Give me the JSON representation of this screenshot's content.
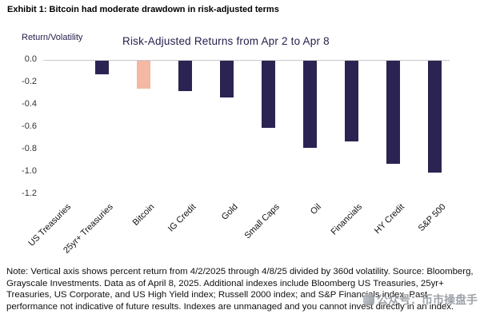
{
  "exhibit_title": "Exhibit 1: Bitcoin had moderate drawdown in risk-adjusted terms",
  "chart_data": {
    "type": "bar",
    "title": "Risk-Adjusted Returns from Apr 2 to Apr 8",
    "ylabel": "Return/Volatility",
    "xlabel": "",
    "ylim": [
      -1.2,
      0.0
    ],
    "y_ticks": [
      "0.0",
      "-0.2",
      "-0.4",
      "-0.6",
      "-0.8",
      "-1.0",
      "-1.2"
    ],
    "grid": false,
    "legend": false,
    "categories": [
      "US Treasuries",
      "25yr+ Treasuries",
      "Bitcoin",
      "IG Credit",
      "Gold",
      "Small Caps",
      "Oil",
      "Financials",
      "HY Credit",
      "S&P 500"
    ],
    "values": [
      0.0,
      -0.12,
      -0.25,
      -0.27,
      -0.33,
      -0.6,
      -0.78,
      -0.72,
      -0.92,
      -1.0
    ],
    "bar_color": "#2b2452",
    "highlight_color": "#f4b8a3",
    "highlight_index": 2
  },
  "note": "Note: Vertical axis shows percent return from 4/2/2025 through 4/8/25 divided by 360d volatility. Source: Bloomberg, Grayscale Investments. Data as of April 8, 2025. Additional indexes include Bloomberg US Treasuries, 25yr+ Treasuries, US Corporate, and US High Yield index; Russell 2000 index; and S&P Financials index. Past performance not indicative of future results. Indexes are unmanaged and you cannot invest directly in an index.",
  "watermark": "公众号：币市操盘手"
}
